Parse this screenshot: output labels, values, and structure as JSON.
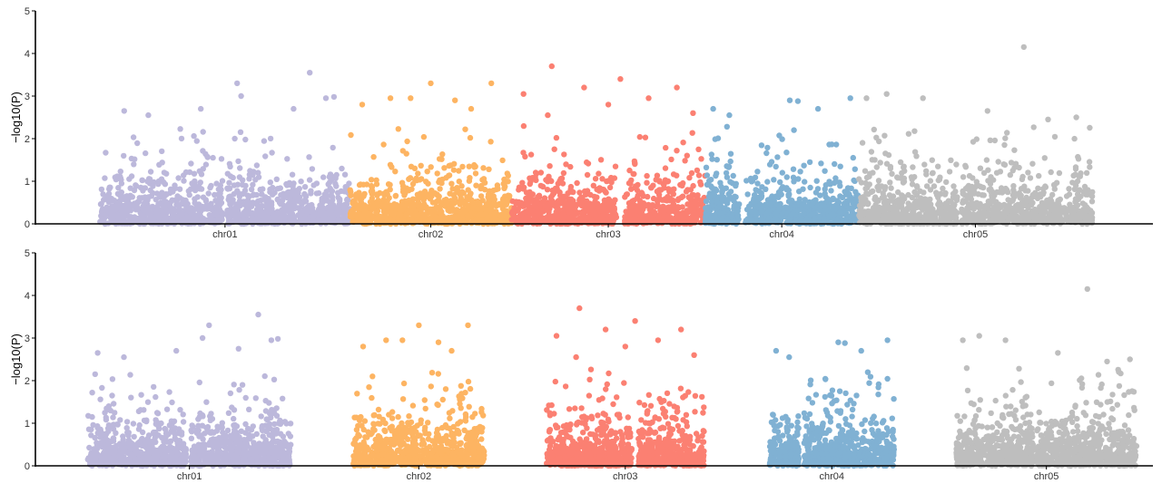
{
  "chart_data": [
    {
      "type": "scatter",
      "panel": "top",
      "title": "",
      "xlabel": "",
      "ylabel": "−log10(P)",
      "ylim": [
        0,
        5
      ],
      "yticks": [
        "0",
        "1",
        "2",
        "3",
        "4",
        "5"
      ],
      "grid": false,
      "legend": "none",
      "chromosomes": [
        {
          "name": "chr01",
          "color": "#bcb8db",
          "start_mb": 0,
          "end_mb": 62,
          "gaps_mb": [
            [
              30.5,
              31.5
            ]
          ],
          "peaks": [
            [
              6,
              2.65
            ],
            [
              12,
              2.55
            ],
            [
              25,
              2.7
            ],
            [
              34,
              3.3
            ],
            [
              35,
              3.0
            ],
            [
              48,
              2.7
            ],
            [
              52,
              3.55
            ],
            [
              56,
              2.95
            ],
            [
              58,
              2.98
            ]
          ]
        },
        {
          "name": "chr02",
          "color": "#fdb462",
          "start_mb": 62,
          "end_mb": 102,
          "gaps_mb": [],
          "peaks": [
            [
              65,
              2.8
            ],
            [
              72,
              2.95
            ],
            [
              77,
              2.95
            ],
            [
              82,
              3.3
            ],
            [
              88,
              2.9
            ],
            [
              92,
              2.7
            ],
            [
              97,
              3.3
            ]
          ]
        },
        {
          "name": "chr03",
          "color": "#fb8072",
          "start_mb": 102,
          "end_mb": 150,
          "gaps_mb": [
            [
              128,
              130
            ]
          ],
          "peaks": [
            [
              105,
              3.05
            ],
            [
              111,
              2.55
            ],
            [
              112,
              3.7
            ],
            [
              120,
              3.2
            ],
            [
              126,
              2.8
            ],
            [
              129,
              3.4
            ],
            [
              136,
              2.95
            ],
            [
              143,
              3.2
            ],
            [
              147,
              2.6
            ]
          ]
        },
        {
          "name": "chr04",
          "color": "#80b1d3",
          "start_mb": 150,
          "end_mb": 188,
          "gaps_mb": [
            [
              158.5,
              160
            ]
          ],
          "peaks": [
            [
              152,
              2.7
            ],
            [
              156,
              2.55
            ],
            [
              171,
              2.9
            ],
            [
              173,
              2.88
            ],
            [
              178,
              2.7
            ],
            [
              186,
              2.95
            ]
          ]
        },
        {
          "name": "chr05",
          "color": "#bebebe",
          "start_mb": 188,
          "end_mb": 246,
          "gaps_mb": [
            [
              212.5,
              213.5
            ]
          ],
          "peaks": [
            [
              190,
              2.95
            ],
            [
              195,
              3.05
            ],
            [
              204,
              2.95
            ],
            [
              220,
              2.65
            ],
            [
              229,
              4.15
            ],
            [
              235,
              2.45
            ],
            [
              242,
              2.5
            ]
          ]
        }
      ]
    },
    {
      "type": "scatter",
      "panel": "bottom",
      "title": "",
      "xlabel": "",
      "ylabel": "−log10(P)",
      "ylim": [
        0,
        5
      ],
      "yticks": [
        "0",
        "1",
        "2",
        "3",
        "4",
        "5"
      ],
      "grid": false,
      "legend": "none",
      "chromosomes": [
        {
          "name": "chr01",
          "color": "#bcb8db",
          "start_mb": 0,
          "end_mb": 62,
          "gaps_mb": [
            [
              30,
              31.5
            ]
          ],
          "peaks": [
            [
              3,
              2.65
            ],
            [
              11,
              2.55
            ],
            [
              27,
              2.7
            ],
            [
              35,
              3.0
            ],
            [
              37,
              3.3
            ],
            [
              46,
              2.75
            ],
            [
              52,
              3.55
            ],
            [
              56,
              2.95
            ],
            [
              58,
              2.98
            ]
          ]
        },
        {
          "name": "chr02",
          "color": "#fdb462",
          "start_mb": 81,
          "end_mb": 121,
          "gaps_mb": [],
          "peaks": [
            [
              84,
              2.8
            ],
            [
              91,
              2.95
            ],
            [
              96,
              2.95
            ],
            [
              101,
              3.3
            ],
            [
              107,
              2.9
            ],
            [
              111,
              2.7
            ],
            [
              116,
              3.3
            ]
          ]
        },
        {
          "name": "chr03",
          "color": "#fb8072",
          "start_mb": 140,
          "end_mb": 188,
          "gaps_mb": [
            [
              166,
              168
            ]
          ],
          "peaks": [
            [
              143,
              3.05
            ],
            [
              149,
              2.55
            ],
            [
              150,
              3.7
            ],
            [
              158,
              3.2
            ],
            [
              164,
              2.8
            ],
            [
              167,
              3.4
            ],
            [
              174,
              2.95
            ],
            [
              181,
              3.2
            ],
            [
              185,
              2.6
            ]
          ]
        },
        {
          "name": "chr04",
          "color": "#80b1d3",
          "start_mb": 208,
          "end_mb": 246,
          "gaps_mb": [
            [
              217,
              218.5
            ]
          ],
          "peaks": [
            [
              210,
              2.7
            ],
            [
              214,
              2.55
            ],
            [
              229,
              2.9
            ],
            [
              231,
              2.88
            ],
            [
              236,
              2.7
            ],
            [
              244,
              2.95
            ]
          ]
        },
        {
          "name": "chr05",
          "color": "#bebebe",
          "start_mb": 265,
          "end_mb": 320,
          "gaps_mb": [
            [
              288.5,
              289.5
            ]
          ],
          "peaks": [
            [
              267,
              2.95
            ],
            [
              272,
              3.05
            ],
            [
              280,
              2.95
            ],
            [
              296,
              2.65
            ],
            [
              305,
              4.15
            ],
            [
              311,
              2.45
            ],
            [
              318,
              2.5
            ]
          ]
        }
      ]
    }
  ]
}
